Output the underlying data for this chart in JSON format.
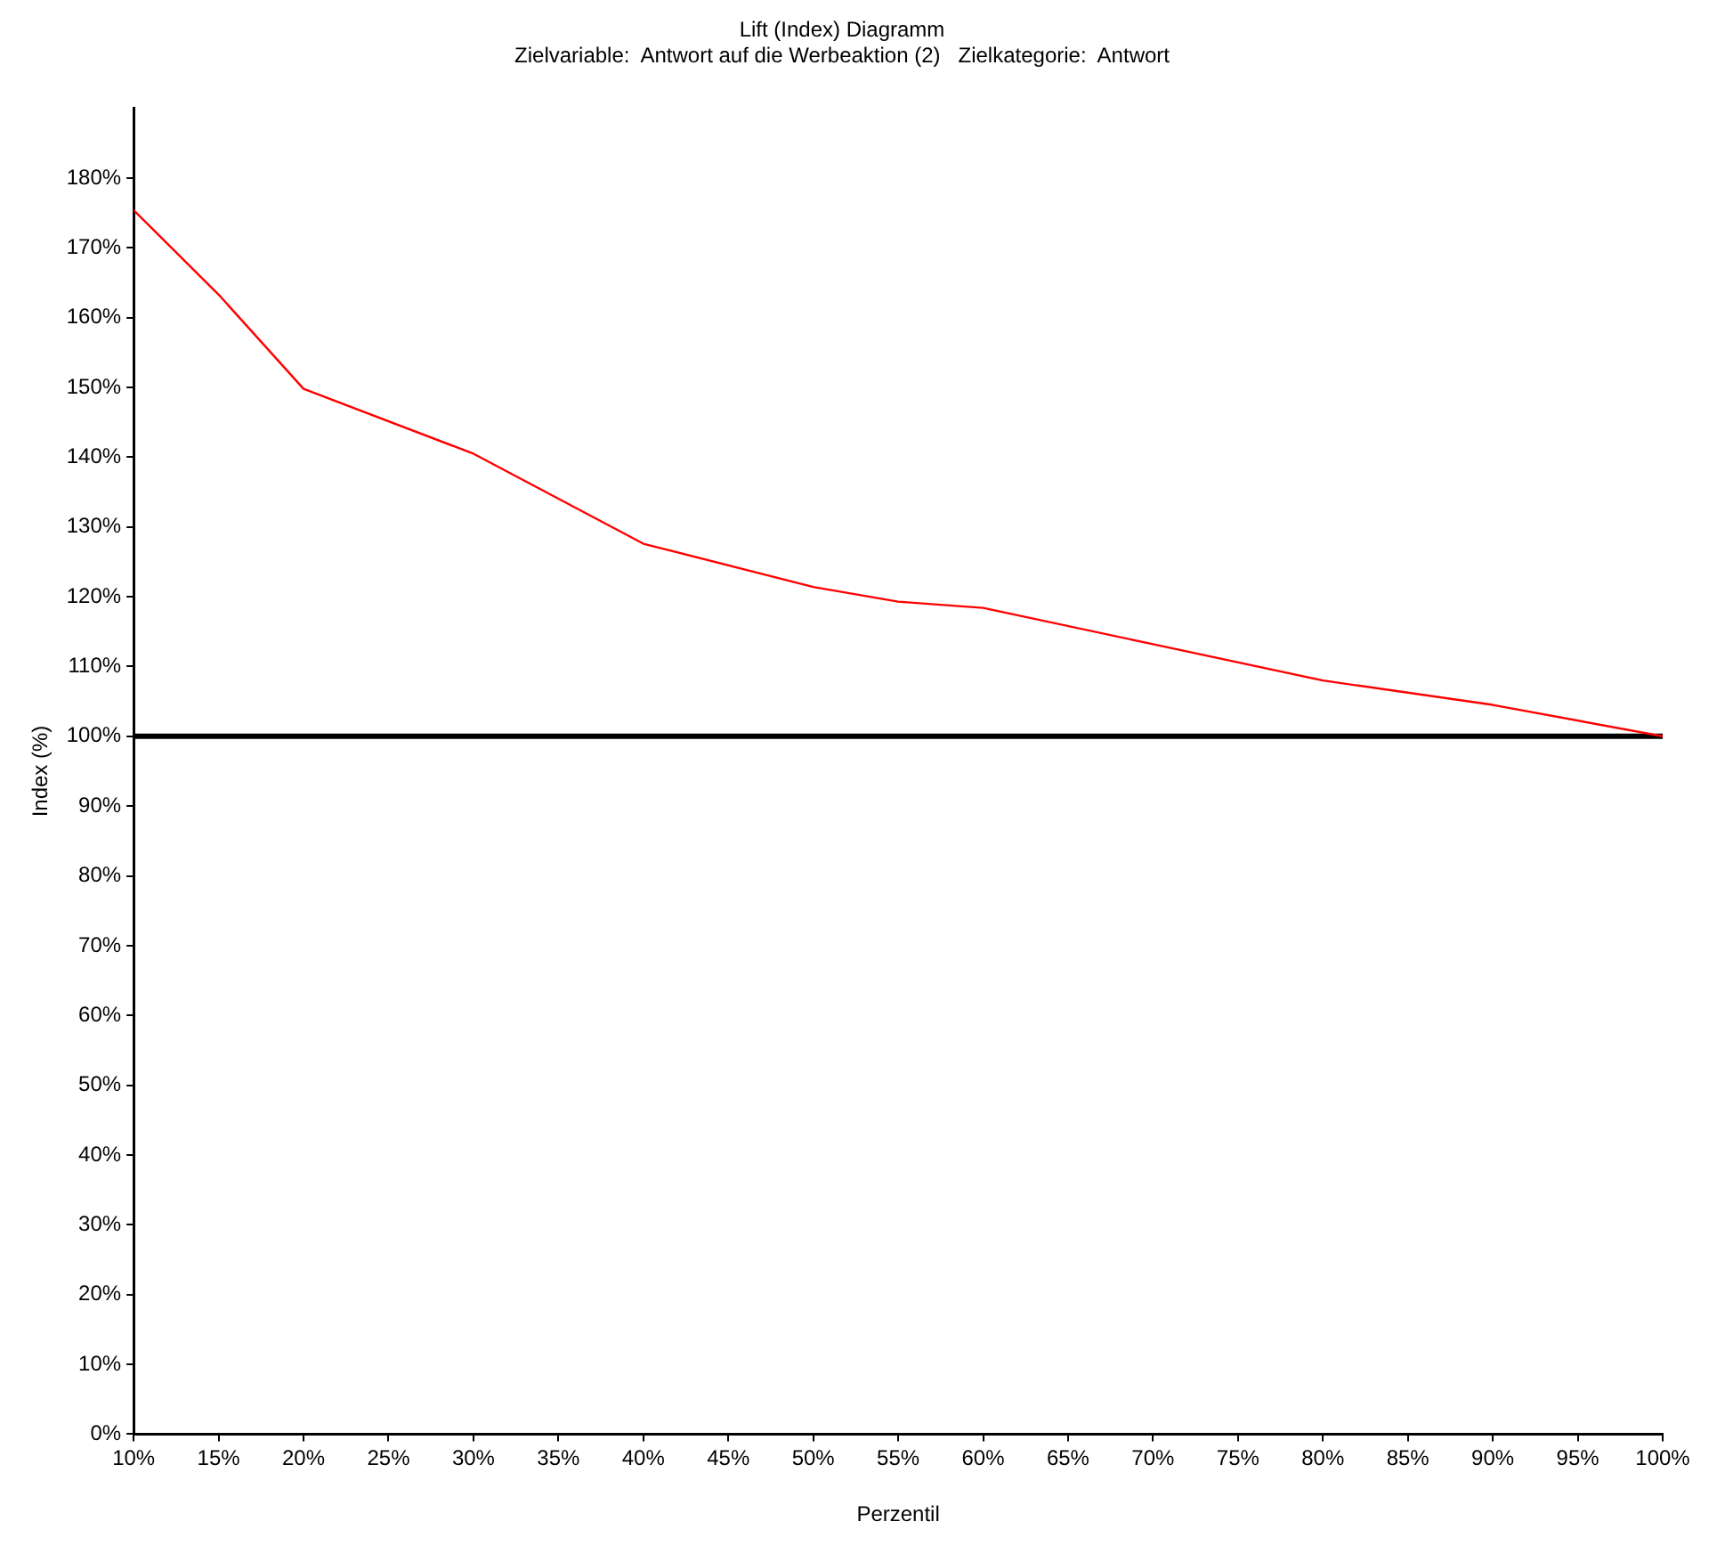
{
  "chart_data": {
    "type": "line",
    "title": "Lift (Index) Diagramm",
    "subtitle": "Zielvariable:  Antwort auf die Werbeaktion (2)   Zielkategorie:  Antwort",
    "xlabel": "Perzentil",
    "ylabel": "Index (%)",
    "x": [
      10,
      15,
      20,
      30,
      40,
      50,
      55,
      60,
      70,
      80,
      90,
      100
    ],
    "series": [
      {
        "color": "#ff0000",
        "values": [
          175.4,
          163.3,
          149.8,
          140.5,
          127.6,
          121.4,
          119.3,
          118.4,
          113.2,
          108,
          104.5,
          100
        ]
      }
    ],
    "xlim": [
      10,
      100
    ],
    "xticks": [
      {
        "value": 10,
        "label": "10%"
      },
      {
        "value": 15,
        "label": "15%"
      },
      {
        "value": 20,
        "label": "20%"
      },
      {
        "value": 25,
        "label": "25%"
      },
      {
        "value": 30,
        "label": "30%"
      },
      {
        "value": 35,
        "label": "35%"
      },
      {
        "value": 40,
        "label": "40%"
      },
      {
        "value": 45,
        "label": "45%"
      },
      {
        "value": 50,
        "label": "50%"
      },
      {
        "value": 55,
        "label": "55%"
      },
      {
        "value": 60,
        "label": "60%"
      },
      {
        "value": 65,
        "label": "65%"
      },
      {
        "value": 70,
        "label": "70%"
      },
      {
        "value": 75,
        "label": "75%"
      },
      {
        "value": 80,
        "label": "80%"
      },
      {
        "value": 85,
        "label": "85%"
      },
      {
        "value": 90,
        "label": "90%"
      },
      {
        "value": 95,
        "label": "95%"
      },
      {
        "value": 100,
        "label": "100%"
      }
    ],
    "ylim": [
      0,
      190
    ],
    "yticks": [
      {
        "value": 0,
        "label": "0%"
      },
      {
        "value": 10,
        "label": "10%"
      },
      {
        "value": 20,
        "label": "20%"
      },
      {
        "value": 30,
        "label": "30%"
      },
      {
        "value": 40,
        "label": "40%"
      },
      {
        "value": 50,
        "label": "50%"
      },
      {
        "value": 60,
        "label": "60%"
      },
      {
        "value": 70,
        "label": "70%"
      },
      {
        "value": 80,
        "label": "80%"
      },
      {
        "value": 90,
        "label": "90%"
      },
      {
        "value": 100,
        "label": "100%"
      },
      {
        "value": 110,
        "label": "110%"
      },
      {
        "value": 120,
        "label": "120%"
      },
      {
        "value": 130,
        "label": "130%"
      },
      {
        "value": 140,
        "label": "140%"
      },
      {
        "value": 150,
        "label": "150%"
      },
      {
        "value": 160,
        "label": "160%"
      },
      {
        "value": 170,
        "label": "170%"
      },
      {
        "value": 180,
        "label": "180%"
      }
    ],
    "ref_lines": [
      {
        "axis": "y",
        "value": 100,
        "color": "#000000"
      }
    ],
    "marker": "none",
    "line_style": "solid"
  }
}
